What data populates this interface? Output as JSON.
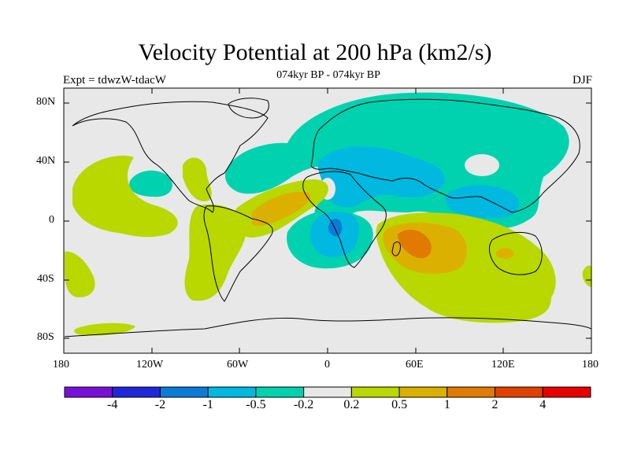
{
  "title": "Velocity Potential at 200 hPa (km2/s)",
  "subtitle": "074kyr BP - 074kyr BP",
  "left_label": "Expt = tdwzW-tdacW",
  "right_label": "DJF",
  "lat_labels": [
    "80N",
    "40N",
    "0",
    "40S",
    "80S"
  ],
  "lon_labels": [
    "180",
    "120W",
    "60W",
    "0",
    "60E",
    "120E",
    "180"
  ],
  "colorbar": {
    "labels": [
      "-4",
      "-2",
      "-1",
      "-0.5",
      "-0.2",
      "0.2",
      "0.5",
      "1",
      "2",
      "4"
    ],
    "colors": [
      "#7a10d8",
      "#1e28d8",
      "#0a7cd8",
      "#00b8e0",
      "#00d2b0",
      "#e8e8e8",
      "#b8d800",
      "#dcb000",
      "#e07a00",
      "#e04000",
      "#e80000"
    ]
  },
  "map_colors": {
    "ocean_land_neutral": "#e8e8e8",
    "cyan": "#00d2b0",
    "light_blue": "#00b8e0",
    "blue": "#0a7cd8",
    "yellow_green": "#b8d800",
    "gold": "#dcb000",
    "orange": "#e07a00",
    "coastline": "#000000"
  }
}
